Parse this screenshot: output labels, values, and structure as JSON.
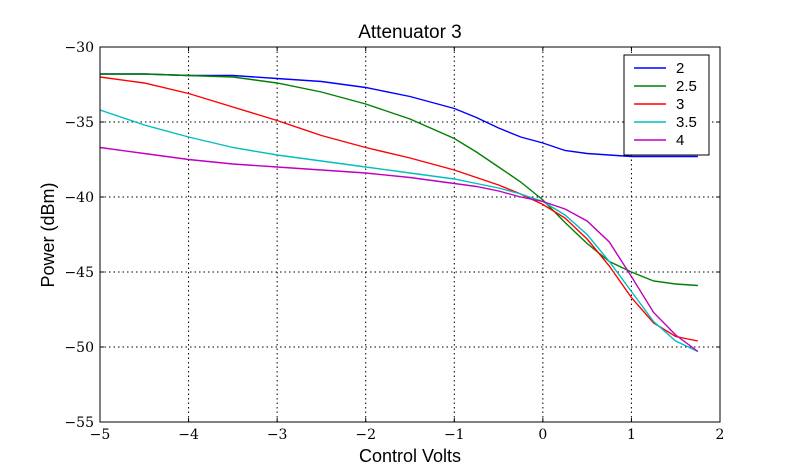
{
  "chart_data": {
    "type": "line",
    "title": "Attenuator 3",
    "xlabel": "Control Volts",
    "ylabel": "Power (dBm)",
    "xlim": [
      -5,
      2
    ],
    "ylim": [
      -55,
      -30
    ],
    "xticks": [
      -5,
      -4,
      -3,
      -2,
      -1,
      0,
      1,
      2
    ],
    "yticks": [
      -55,
      -50,
      -45,
      -40,
      -35,
      -30
    ],
    "xtick_labels": [
      "−5",
      "−4",
      "−3",
      "−2",
      "−1",
      "0",
      "1",
      "2"
    ],
    "ytick_labels": [
      "−55",
      "−50",
      "−45",
      "−40",
      "−35",
      "−30"
    ],
    "grid": true,
    "legend_position": "top-right",
    "colors": {
      "2": "#0000ff",
      "2.5": "#008000",
      "3": "#ff0000",
      "3.5": "#00bfbf",
      "4": "#bf00bf"
    },
    "series": [
      {
        "name": "2",
        "x": [
          -5,
          -4.5,
          -4,
          -3.5,
          -3,
          -2.5,
          -2,
          -1.5,
          -1,
          -0.75,
          -0.5,
          -0.25,
          0,
          0.25,
          0.5,
          0.75,
          1,
          1.25,
          1.5,
          1.75
        ],
        "y": [
          -31.8,
          -31.8,
          -31.9,
          -31.9,
          -32.1,
          -32.3,
          -32.7,
          -33.3,
          -34.1,
          -34.7,
          -35.4,
          -36.0,
          -36.4,
          -36.9,
          -37.1,
          -37.2,
          -37.3,
          -37.3,
          -37.3,
          -37.3
        ]
      },
      {
        "name": "2.5",
        "x": [
          -5,
          -4.5,
          -4,
          -3.5,
          -3,
          -2.5,
          -2,
          -1.5,
          -1,
          -0.75,
          -0.5,
          -0.25,
          0,
          0.25,
          0.5,
          0.75,
          1,
          1.25,
          1.5,
          1.75
        ],
        "y": [
          -31.8,
          -31.8,
          -31.9,
          -32.0,
          -32.4,
          -33.0,
          -33.8,
          -34.8,
          -36.1,
          -37.0,
          -38.0,
          -39.0,
          -40.2,
          -41.7,
          -43.1,
          -44.3,
          -45.0,
          -45.6,
          -45.8,
          -45.9
        ]
      },
      {
        "name": "3",
        "x": [
          -5,
          -4.5,
          -4,
          -3.5,
          -3,
          -2.5,
          -2,
          -1.5,
          -1,
          -0.75,
          -0.5,
          -0.25,
          0,
          0.25,
          0.5,
          0.75,
          1,
          1.25,
          1.5,
          1.75
        ],
        "y": [
          -32.0,
          -32.4,
          -33.1,
          -34.0,
          -34.9,
          -35.9,
          -36.7,
          -37.4,
          -38.2,
          -38.7,
          -39.2,
          -39.8,
          -40.5,
          -41.4,
          -42.8,
          -44.6,
          -46.7,
          -48.4,
          -49.3,
          -49.6
        ]
      },
      {
        "name": "3.5",
        "x": [
          -5,
          -4.5,
          -4,
          -3.5,
          -3,
          -2.5,
          -2,
          -1.5,
          -1,
          -0.75,
          -0.5,
          -0.25,
          0,
          0.25,
          0.5,
          0.75,
          1,
          1.25,
          1.5,
          1.75
        ],
        "y": [
          -34.2,
          -35.2,
          -36.0,
          -36.7,
          -37.2,
          -37.6,
          -38.0,
          -38.4,
          -38.8,
          -39.1,
          -39.4,
          -39.8,
          -40.3,
          -41.2,
          -42.5,
          -44.3,
          -46.3,
          -48.3,
          -49.6,
          -50.3
        ]
      },
      {
        "name": "4",
        "x": [
          -5,
          -4.5,
          -4,
          -3.5,
          -3,
          -2.5,
          -2,
          -1.5,
          -1,
          -0.75,
          -0.5,
          -0.25,
          0,
          0.25,
          0.5,
          0.75,
          1,
          1.25,
          1.5,
          1.75
        ],
        "y": [
          -36.7,
          -37.1,
          -37.5,
          -37.8,
          -38.0,
          -38.2,
          -38.4,
          -38.7,
          -39.1,
          -39.3,
          -39.6,
          -40.0,
          -40.3,
          -40.8,
          -41.6,
          -43.0,
          -45.3,
          -47.7,
          -49.2,
          -50.3
        ]
      }
    ]
  }
}
